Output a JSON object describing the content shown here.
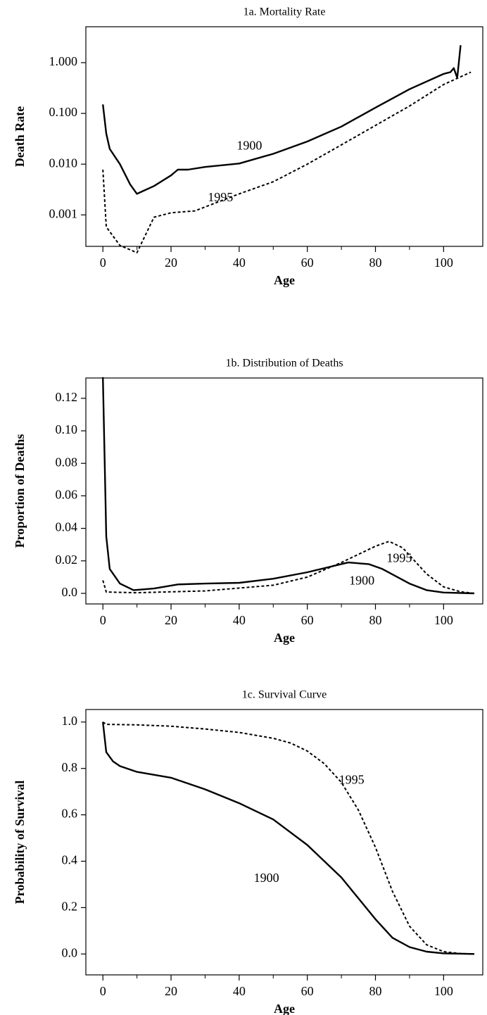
{
  "chart_data": [
    {
      "type": "line",
      "title": "1a. Mortality Rate",
      "x_label": "Age",
      "y_label": "Death Rate",
      "log_y": true,
      "xlim": [
        -5,
        111.5
      ],
      "ylim": [
        0.00024,
        5.1
      ],
      "xticks": [
        0,
        20,
        40,
        60,
        80,
        100
      ],
      "xminorticks": [
        10,
        30,
        50,
        70,
        90
      ],
      "yticks": [
        {
          "value": 0.001,
          "label": "0.001"
        },
        {
          "value": 0.01,
          "label": "0.010"
        },
        {
          "value": 0.1,
          "label": "0.100"
        },
        {
          "value": 1,
          "label": "1.000"
        }
      ],
      "series": [
        {
          "name": "1900",
          "color": "#000000",
          "dash": false,
          "label_at": [
            43,
            0.022
          ],
          "x": [
            0,
            1,
            2,
            5,
            8,
            10,
            12,
            15,
            20,
            22,
            25,
            30,
            40,
            50,
            60,
            70,
            80,
            90,
            100,
            102,
            103,
            104,
            105
          ],
          "values": [
            0.15,
            0.04,
            0.02,
            0.01,
            0.004,
            0.0026,
            0.003,
            0.0037,
            0.006,
            0.0078,
            0.0078,
            0.0088,
            0.0103,
            0.016,
            0.028,
            0.055,
            0.13,
            0.3,
            0.6,
            0.65,
            0.78,
            0.5,
            2.2
          ]
        },
        {
          "name": "1995",
          "color": "#000000",
          "dash": true,
          "label_at": [
            34.5,
            0.0021
          ],
          "x": [
            0,
            1,
            5,
            10,
            15,
            20,
            27,
            40,
            50,
            60,
            70,
            80,
            90,
            100,
            108
          ],
          "values": [
            0.0078,
            0.00058,
            0.00025,
            0.00018,
            0.0009,
            0.0011,
            0.0012,
            0.0026,
            0.0045,
            0.01,
            0.024,
            0.058,
            0.14,
            0.37,
            0.65
          ]
        }
      ]
    },
    {
      "type": "line",
      "title": "1b. Distribution of Deaths",
      "x_label": "Age",
      "y_label": "Proportion of Deaths",
      "log_y": false,
      "xlim": [
        -5,
        111.5
      ],
      "ylim": [
        -0.0065,
        0.1325
      ],
      "xticks": [
        0,
        20,
        40,
        60,
        80,
        100
      ],
      "xminorticks": [
        10,
        30,
        50,
        70,
        90
      ],
      "yticks": [
        {
          "value": 0,
          "label": "0.0"
        },
        0.02,
        0.04,
        0.06,
        0.08,
        {
          "value": 0.1,
          "label": "0.10"
        },
        0.12
      ],
      "series": [
        {
          "name": "1900",
          "color": "#000000",
          "dash": false,
          "label_at": [
            76,
            0.0073
          ],
          "x": [
            0,
            1,
            2,
            5,
            9,
            15,
            22,
            30,
            40,
            50,
            60,
            72,
            78,
            82,
            90,
            95,
            100,
            109
          ],
          "values": [
            0.133,
            0.035,
            0.015,
            0.006,
            0.002,
            0.003,
            0.0055,
            0.006,
            0.0065,
            0.009,
            0.013,
            0.019,
            0.018,
            0.015,
            0.006,
            0.002,
            0.0005,
            0
          ]
        },
        {
          "name": "1995",
          "color": "#000000",
          "dash": true,
          "label_at": [
            87,
            0.021
          ],
          "x": [
            0,
            1,
            10,
            30,
            50,
            60,
            70,
            80,
            84,
            88,
            95,
            100,
            105,
            109
          ],
          "values": [
            0.008,
            0.0008,
            0.0004,
            0.0015,
            0.005,
            0.01,
            0.019,
            0.029,
            0.032,
            0.028,
            0.012,
            0.004,
            0.001,
            0
          ]
        }
      ]
    },
    {
      "type": "line",
      "title": "1c. Survival Curve",
      "x_label": "Age",
      "y_label": "Probability of Survival",
      "log_y": false,
      "xlim": [
        -5,
        111.5
      ],
      "ylim": [
        -0.09,
        1.054
      ],
      "xticks": [
        0,
        20,
        40,
        60,
        80,
        100
      ],
      "xminorticks": [
        10,
        30,
        50,
        70,
        90
      ],
      "yticks": [
        {
          "value": 0,
          "label": "0.0"
        },
        0.2,
        0.4,
        0.6,
        0.8,
        {
          "value": 1,
          "label": "1.0"
        }
      ],
      "series": [
        {
          "name": "1900",
          "color": "#000000",
          "dash": false,
          "label_at": [
            48,
            0.323
          ],
          "x": [
            0,
            1,
            3,
            5,
            10,
            20,
            30,
            40,
            50,
            60,
            70,
            75,
            80,
            85,
            90,
            95,
            100,
            109
          ],
          "values": [
            1.0,
            0.87,
            0.83,
            0.81,
            0.785,
            0.76,
            0.71,
            0.65,
            0.58,
            0.47,
            0.33,
            0.24,
            0.15,
            0.07,
            0.03,
            0.01,
            0.003,
            0
          ]
        },
        {
          "name": "1995",
          "color": "#000000",
          "dash": true,
          "label_at": [
            73,
            0.746
          ],
          "x": [
            0,
            1,
            10,
            20,
            30,
            40,
            50,
            55,
            60,
            65,
            70,
            75,
            80,
            85,
            90,
            95,
            100,
            105,
            109
          ],
          "values": [
            1.0,
            0.99,
            0.988,
            0.982,
            0.97,
            0.955,
            0.93,
            0.91,
            0.875,
            0.82,
            0.74,
            0.62,
            0.46,
            0.27,
            0.12,
            0.04,
            0.01,
            0.002,
            0
          ]
        }
      ]
    }
  ]
}
